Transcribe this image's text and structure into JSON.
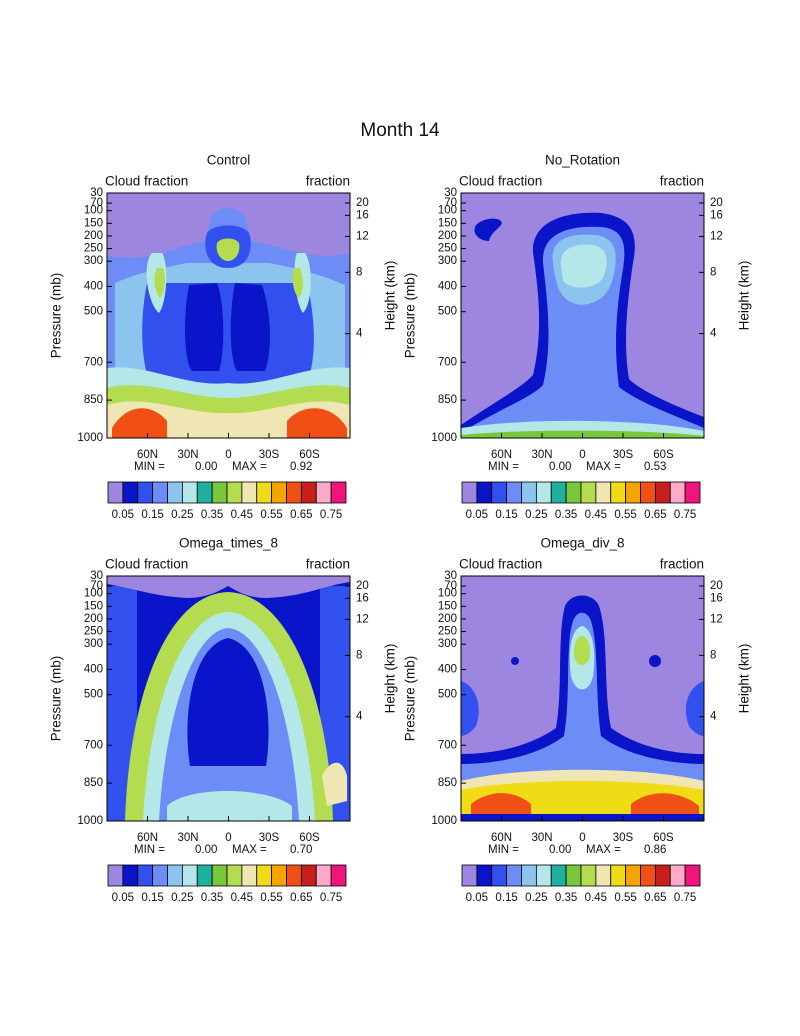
{
  "title": "Month 14",
  "chart_data": [
    {
      "type": "contour",
      "title": "Control",
      "left_subtitle": "Cloud fraction",
      "right_subtitle": "fraction",
      "ylabel": "Pressure (mb)",
      "y2label": "Height (km)",
      "ylim": [
        1000,
        30
      ],
      "yticks": [
        30,
        70,
        100,
        150,
        200,
        250,
        300,
        400,
        500,
        700,
        850,
        1000
      ],
      "y2ticks": [
        20,
        16,
        12,
        8,
        4
      ],
      "xlim": [
        90,
        -90
      ],
      "xticks": [
        {
          "value": 60,
          "label": "60N"
        },
        {
          "value": 30,
          "label": "30N"
        },
        0,
        {
          "value": -30,
          "label": "30S"
        },
        {
          "value": -60,
          "label": "60S"
        }
      ],
      "min_text": "MIN =",
      "min": {
        "value": 0,
        "label": "0.00"
      },
      "max_text": "MAX =",
      "max": 0.92,
      "colorbar": {
        "clim": [
          0,
          0.8
        ],
        "ticks": [
          0.05,
          0.15,
          0.25,
          0.35,
          0.45,
          0.55,
          0.65,
          0.75
        ],
        "colors": [
          "#9d86e0",
          "#0a14c8",
          "#3250ee",
          "#6e8cf5",
          "#8cc4f0",
          "#b4e8e8",
          "#20b0a0",
          "#78c83c",
          "#b4dc50",
          "#f0e6b4",
          "#f0dc14",
          "#f5a500",
          "#f05014",
          "#c81e1e",
          "#ffaac8",
          "#f0147d"
        ]
      }
    },
    {
      "type": "contour",
      "title": "No_Rotation",
      "left_subtitle": "Cloud fraction",
      "right_subtitle": "fraction",
      "ylabel": "Pressure (mb)",
      "y2label": "Height (km)",
      "ylim": [
        1000,
        30
      ],
      "yticks": [
        30,
        70,
        100,
        150,
        200,
        250,
        300,
        400,
        500,
        700,
        850,
        1000
      ],
      "y2ticks": [
        20,
        16,
        12,
        8,
        4
      ],
      "xlim": [
        90,
        -90
      ],
      "xticks": [
        {
          "value": 60,
          "label": "60N"
        },
        {
          "value": 30,
          "label": "30N"
        },
        0,
        {
          "value": -30,
          "label": "30S"
        },
        {
          "value": -60,
          "label": "60S"
        }
      ],
      "min_text": "MIN =",
      "min": {
        "value": 0,
        "label": "0.00"
      },
      "max_text": "MAX =",
      "max": 0.53,
      "colorbar": {
        "clim": [
          0,
          0.8
        ],
        "ticks": [
          0.05,
          0.15,
          0.25,
          0.35,
          0.45,
          0.55,
          0.65,
          0.75
        ],
        "colors": [
          "#9d86e0",
          "#0a14c8",
          "#3250ee",
          "#6e8cf5",
          "#8cc4f0",
          "#b4e8e8",
          "#20b0a0",
          "#78c83c",
          "#b4dc50",
          "#f0e6b4",
          "#f0dc14",
          "#f5a500",
          "#f05014",
          "#c81e1e",
          "#ffaac8",
          "#f0147d"
        ]
      }
    },
    {
      "type": "contour",
      "title": "Omega_times_8",
      "left_subtitle": "Cloud fraction",
      "right_subtitle": "fraction",
      "ylabel": "Pressure (mb)",
      "y2label": "Height (km)",
      "ylim": [
        1000,
        30
      ],
      "yticks": [
        30,
        70,
        100,
        150,
        200,
        250,
        300,
        400,
        500,
        700,
        850,
        1000
      ],
      "y2ticks": [
        20,
        16,
        12,
        8,
        4
      ],
      "xlim": [
        90,
        -90
      ],
      "xticks": [
        {
          "value": 60,
          "label": "60N"
        },
        {
          "value": 30,
          "label": "30N"
        },
        0,
        {
          "value": -30,
          "label": "30S"
        },
        {
          "value": -60,
          "label": "60S"
        }
      ],
      "min_text": "MIN =",
      "min": {
        "value": 0,
        "label": "0.00"
      },
      "max_text": "MAX =",
      "max": {
        "value": 0.7,
        "label": "0.70"
      },
      "colorbar": {
        "clim": [
          0,
          0.8
        ],
        "ticks": [
          0.05,
          0.15,
          0.25,
          0.35,
          0.45,
          0.55,
          0.65,
          0.75
        ],
        "colors": [
          "#9d86e0",
          "#0a14c8",
          "#3250ee",
          "#6e8cf5",
          "#8cc4f0",
          "#b4e8e8",
          "#20b0a0",
          "#78c83c",
          "#b4dc50",
          "#f0e6b4",
          "#f0dc14",
          "#f5a500",
          "#f05014",
          "#c81e1e",
          "#ffaac8",
          "#f0147d"
        ]
      }
    },
    {
      "type": "contour",
      "title": "Omega_div_8",
      "left_subtitle": "Cloud fraction",
      "right_subtitle": "fraction",
      "ylabel": "Pressure (mb)",
      "y2label": "Height (km)",
      "ylim": [
        1000,
        30
      ],
      "yticks": [
        30,
        70,
        100,
        150,
        200,
        250,
        300,
        400,
        500,
        700,
        850,
        1000
      ],
      "y2ticks": [
        20,
        16,
        12,
        8,
        4
      ],
      "xlim": [
        90,
        -90
      ],
      "xticks": [
        {
          "value": 60,
          "label": "60N"
        },
        {
          "value": 30,
          "label": "30N"
        },
        0,
        {
          "value": -30,
          "label": "30S"
        },
        {
          "value": -60,
          "label": "60S"
        }
      ],
      "min_text": "MIN =",
      "min": {
        "value": 0,
        "label": "0.00"
      },
      "max_text": "MAX =",
      "max": 0.86,
      "colorbar": {
        "clim": [
          0,
          0.8
        ],
        "ticks": [
          0.05,
          0.15,
          0.25,
          0.35,
          0.45,
          0.55,
          0.65,
          0.75
        ],
        "colors": [
          "#9d86e0",
          "#0a14c8",
          "#3250ee",
          "#6e8cf5",
          "#8cc4f0",
          "#b4e8e8",
          "#20b0a0",
          "#78c83c",
          "#b4dc50",
          "#f0e6b4",
          "#f0dc14",
          "#f5a500",
          "#f05014",
          "#c81e1e",
          "#ffaac8",
          "#f0147d"
        ]
      }
    }
  ]
}
